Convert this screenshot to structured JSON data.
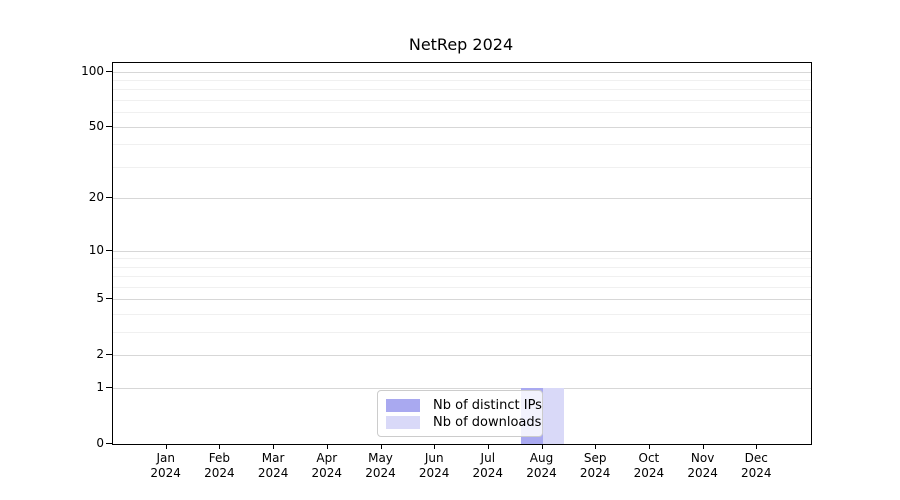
{
  "chart_data": {
    "type": "bar",
    "title": "NetRep 2024",
    "xlabel": "",
    "ylabel": "",
    "categories": [
      "Jan",
      "Feb",
      "Mar",
      "Apr",
      "May",
      "Jun",
      "Jul",
      "Aug",
      "Sep",
      "Oct",
      "Nov",
      "Dec"
    ],
    "x_tick_year": "2024",
    "y_scale": "log1p",
    "y_ticks": [
      0,
      1,
      2,
      5,
      10,
      20,
      50,
      100
    ],
    "y_minor_ticks": [
      3,
      4,
      6,
      7,
      8,
      9,
      30,
      40,
      60,
      70,
      80,
      90
    ],
    "ylim_top_log10": 2.05,
    "grid": true,
    "legend_position": "lower center",
    "series": [
      {
        "name": "Nb of distinct IPs",
        "color": "#a9a9f0",
        "values": [
          0,
          0,
          0,
          0,
          0,
          0,
          0,
          1,
          0,
          0,
          0,
          0
        ]
      },
      {
        "name": "Nb of downloads",
        "color": "#d9d9f8",
        "values": [
          0,
          0,
          0,
          0,
          0,
          0,
          0,
          1,
          0,
          0,
          0,
          0
        ]
      }
    ]
  },
  "colors": {
    "grid_major": "#d7d7d7",
    "grid_minor": "#f0f0f0",
    "axis": "#000000",
    "legend_border": "#cccccc",
    "background": "#ffffff"
  }
}
